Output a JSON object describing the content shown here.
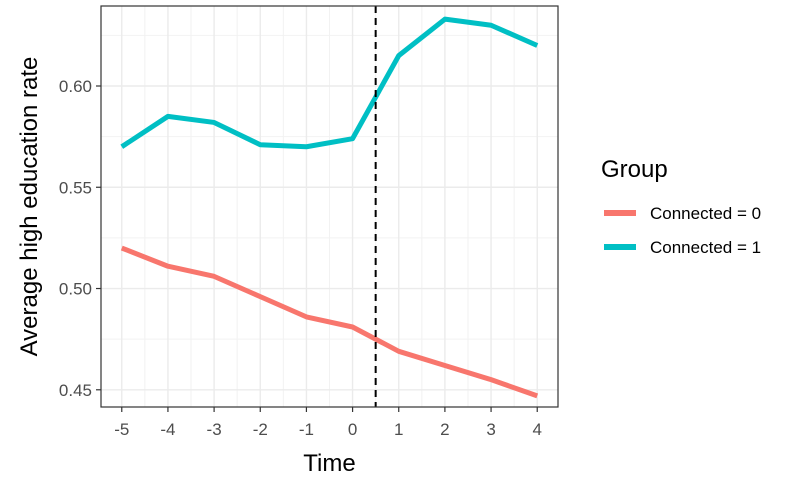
{
  "chart_data": {
    "type": "line",
    "xlabel": "Time",
    "ylabel": "Average high education rate",
    "xlim": [
      -5.45,
      4.45
    ],
    "ylim": [
      0.4415,
      0.6395
    ],
    "x": [
      -5,
      -4,
      -3,
      -2,
      -1,
      0,
      1,
      2,
      3,
      4
    ],
    "x_ticks": [
      -5,
      -4,
      -3,
      -2,
      -1,
      0,
      1,
      2,
      3,
      4
    ],
    "x_tick_labels": [
      "-5",
      "-4",
      "-3",
      "-2",
      "-1",
      "0",
      "1",
      "2",
      "3",
      "4"
    ],
    "y_ticks": [
      0.45,
      0.5,
      0.55,
      0.6
    ],
    "y_tick_labels": [
      "0.45",
      "0.50",
      "0.55",
      "0.60"
    ],
    "vline_x": 0.5,
    "grid": true,
    "legend": {
      "title": "Group",
      "position": "right"
    },
    "series": [
      {
        "name": "Connected = 0",
        "color": "#f8766d",
        "values": [
          0.52,
          0.511,
          0.506,
          0.496,
          0.486,
          0.481,
          0.469,
          0.462,
          0.455,
          0.447
        ]
      },
      {
        "name": "Connected = 1",
        "color": "#00bfc4",
        "values": [
          0.57,
          0.585,
          0.582,
          0.571,
          0.57,
          0.574,
          0.615,
          0.633,
          0.63,
          0.62
        ]
      }
    ]
  }
}
